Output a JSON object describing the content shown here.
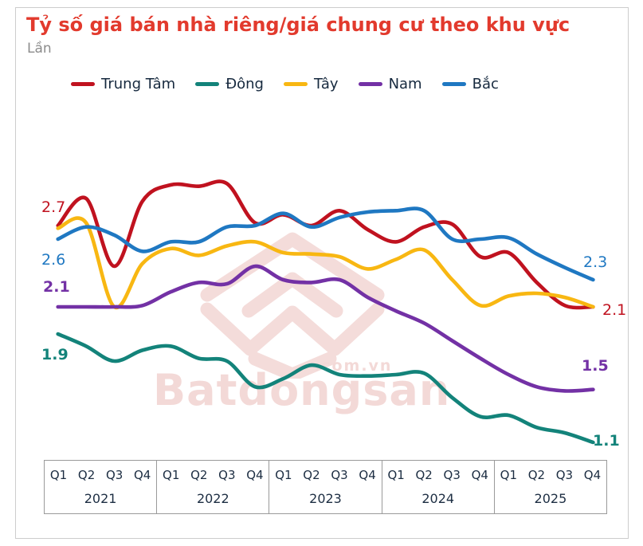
{
  "card": {
    "title": "Tỷ số giá bán nhà riêng/giá chung cư theo khu vực",
    "subtitle": "Lần"
  },
  "watermark": {
    "brand": "Batdongsan",
    "domain": ".com.vn"
  },
  "chart_data": {
    "type": "line",
    "title": "Tỷ số giá bán nhà riêng/giá chung cư theo khu vực",
    "unit": "Lần",
    "ylim": [
      1.0,
      3.1
    ],
    "grid": false,
    "legend_position": "top",
    "years": [
      "2021",
      "2022",
      "2023",
      "2024",
      "2025"
    ],
    "quarters": [
      "Q1",
      "Q2",
      "Q3",
      "Q4"
    ],
    "series": [
      {
        "name": "Trung Tâm",
        "color": "#c0121f",
        "values": [
          2.7,
          2.9,
          2.4,
          2.88,
          3.0,
          2.99,
          3.01,
          2.72,
          2.78,
          2.7,
          2.81,
          2.67,
          2.58,
          2.69,
          2.71,
          2.47,
          2.5,
          2.28,
          2.11,
          2.1
        ]
      },
      {
        "name": "Đông",
        "color": "#13837a",
        "values": [
          1.9,
          1.81,
          1.7,
          1.78,
          1.81,
          1.72,
          1.7,
          1.51,
          1.57,
          1.67,
          1.6,
          1.59,
          1.6,
          1.61,
          1.43,
          1.29,
          1.3,
          1.21,
          1.17,
          1.1
        ]
      },
      {
        "name": "Tây",
        "color": "#f8b712",
        "values": [
          2.68,
          2.72,
          2.1,
          2.42,
          2.53,
          2.48,
          2.55,
          2.58,
          2.5,
          2.49,
          2.47,
          2.38,
          2.45,
          2.52,
          2.3,
          2.11,
          2.18,
          2.2,
          2.17,
          2.1
        ]
      },
      {
        "name": "Nam",
        "color": "#7331a5",
        "values": [
          2.1,
          2.1,
          2.1,
          2.11,
          2.21,
          2.28,
          2.27,
          2.4,
          2.3,
          2.28,
          2.3,
          2.17,
          2.07,
          1.98,
          1.85,
          1.72,
          1.6,
          1.51,
          1.48,
          1.49
        ]
      },
      {
        "name": "Bắc",
        "color": "#1f78c2",
        "values": [
          2.6,
          2.69,
          2.63,
          2.51,
          2.58,
          2.58,
          2.69,
          2.7,
          2.79,
          2.69,
          2.76,
          2.8,
          2.81,
          2.81,
          2.6,
          2.6,
          2.61,
          2.49,
          2.39,
          2.3
        ]
      }
    ],
    "annotations": [
      {
        "text": "2.7",
        "color": "#c0121f",
        "bold": false
      },
      {
        "text": "2.6",
        "color": "#1f78c2",
        "bold": false
      },
      {
        "text": "2.1",
        "color": "#7331a5",
        "bold": true
      },
      {
        "text": "1.9",
        "color": "#13837a",
        "bold": true
      },
      {
        "text": "2.3",
        "color": "#1f78c2",
        "bold": false
      },
      {
        "text": "2.1",
        "color": "#c0121f",
        "bold": false
      },
      {
        "text": "1.5",
        "color": "#7331a5",
        "bold": true
      },
      {
        "text": "1.1",
        "color": "#13837a",
        "bold": true
      }
    ]
  }
}
